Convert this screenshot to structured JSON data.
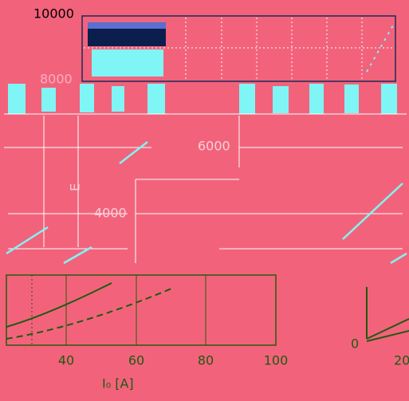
{
  "labels": {
    "y_ticks": [
      "10000",
      "8000",
      "6000",
      "4000"
    ],
    "x_ticks": [
      "40",
      "60",
      "80",
      "100"
    ],
    "inset_y_tick": "0",
    "inset_x_tick": "20",
    "x_axis_label": "I₀ [A]",
    "y_axis_label": "E"
  }
}
